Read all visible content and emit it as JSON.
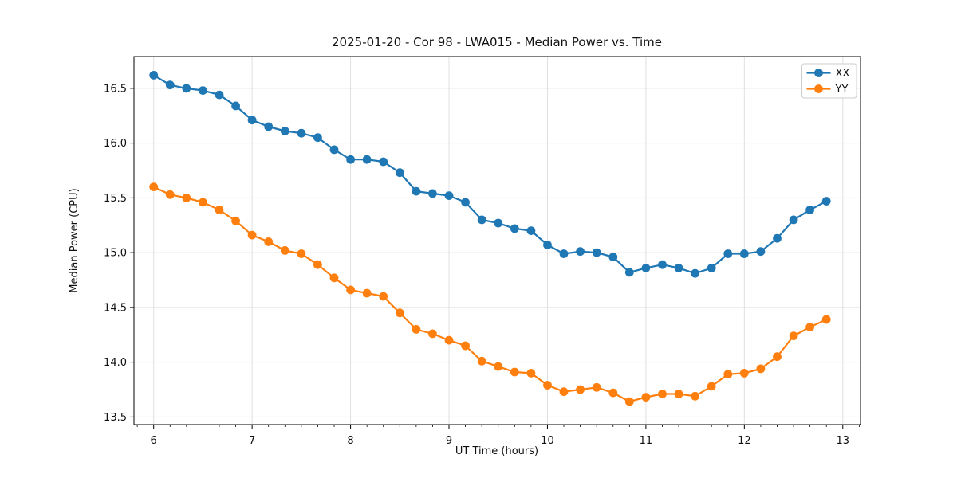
{
  "chart_data": {
    "type": "line",
    "title": "2025-01-20 - Cor 98 - LWA015 - Median Power vs. Time",
    "xlabel": "UT Time (hours)",
    "ylabel": "Median Power (CPU)",
    "xlim": [
      5.8,
      13.18
    ],
    "ylim": [
      13.43,
      16.79
    ],
    "xticks": [
      6,
      7,
      8,
      9,
      10,
      11,
      12,
      13
    ],
    "xticklabels": [
      "6",
      "7",
      "8",
      "9",
      "10",
      "11",
      "12",
      "13"
    ],
    "yticks": [
      13.5,
      14.0,
      14.5,
      15.0,
      15.5,
      16.0,
      16.5
    ],
    "yticklabels": [
      "13.5",
      "14.0",
      "14.5",
      "15.0",
      "15.5",
      "16.0",
      "16.5"
    ],
    "minor_xtick_step": 0.166667,
    "grid": "major-both-axes",
    "legend_position": "upper right",
    "background_color": "#ffffff",
    "grid_color": "#e0e0e0",
    "x": [
      6.0,
      6.1667,
      6.3333,
      6.5,
      6.6667,
      6.8333,
      7.0,
      7.1667,
      7.3333,
      7.5,
      7.6667,
      7.8333,
      8.0,
      8.1667,
      8.3333,
      8.5,
      8.6667,
      8.8333,
      9.0,
      9.1667,
      9.3333,
      9.5,
      9.6667,
      9.8333,
      10.0,
      10.1667,
      10.3333,
      10.5,
      10.6667,
      10.8333,
      11.0,
      11.1667,
      11.3333,
      11.5,
      11.6667,
      11.8333,
      12.0,
      12.1667,
      12.3333,
      12.5,
      12.6667,
      12.8333
    ],
    "series": [
      {
        "name": "XX",
        "color": "#1f77b4",
        "marker": "circle",
        "values": [
          16.62,
          16.53,
          16.5,
          16.48,
          16.44,
          16.34,
          16.21,
          16.15,
          16.11,
          16.09,
          16.05,
          15.94,
          15.85,
          15.85,
          15.83,
          15.73,
          15.56,
          15.54,
          15.52,
          15.46,
          15.3,
          15.27,
          15.22,
          15.2,
          15.07,
          14.99,
          15.01,
          15.0,
          14.96,
          14.82,
          14.86,
          14.89,
          14.86,
          14.81,
          14.86,
          14.99,
          14.99,
          15.01,
          15.13,
          15.3,
          15.39,
          15.47
        ]
      },
      {
        "name": "YY",
        "color": "#ff7f0e",
        "marker": "circle",
        "values": [
          15.6,
          15.53,
          15.5,
          15.46,
          15.39,
          15.29,
          15.16,
          15.1,
          15.02,
          14.99,
          14.89,
          14.77,
          14.66,
          14.63,
          14.6,
          14.45,
          14.3,
          14.26,
          14.2,
          14.15,
          14.01,
          13.96,
          13.91,
          13.9,
          13.79,
          13.73,
          13.75,
          13.77,
          13.72,
          13.64,
          13.68,
          13.71,
          13.71,
          13.69,
          13.78,
          13.89,
          13.9,
          13.94,
          14.05,
          14.24,
          14.32,
          14.39
        ]
      }
    ]
  }
}
